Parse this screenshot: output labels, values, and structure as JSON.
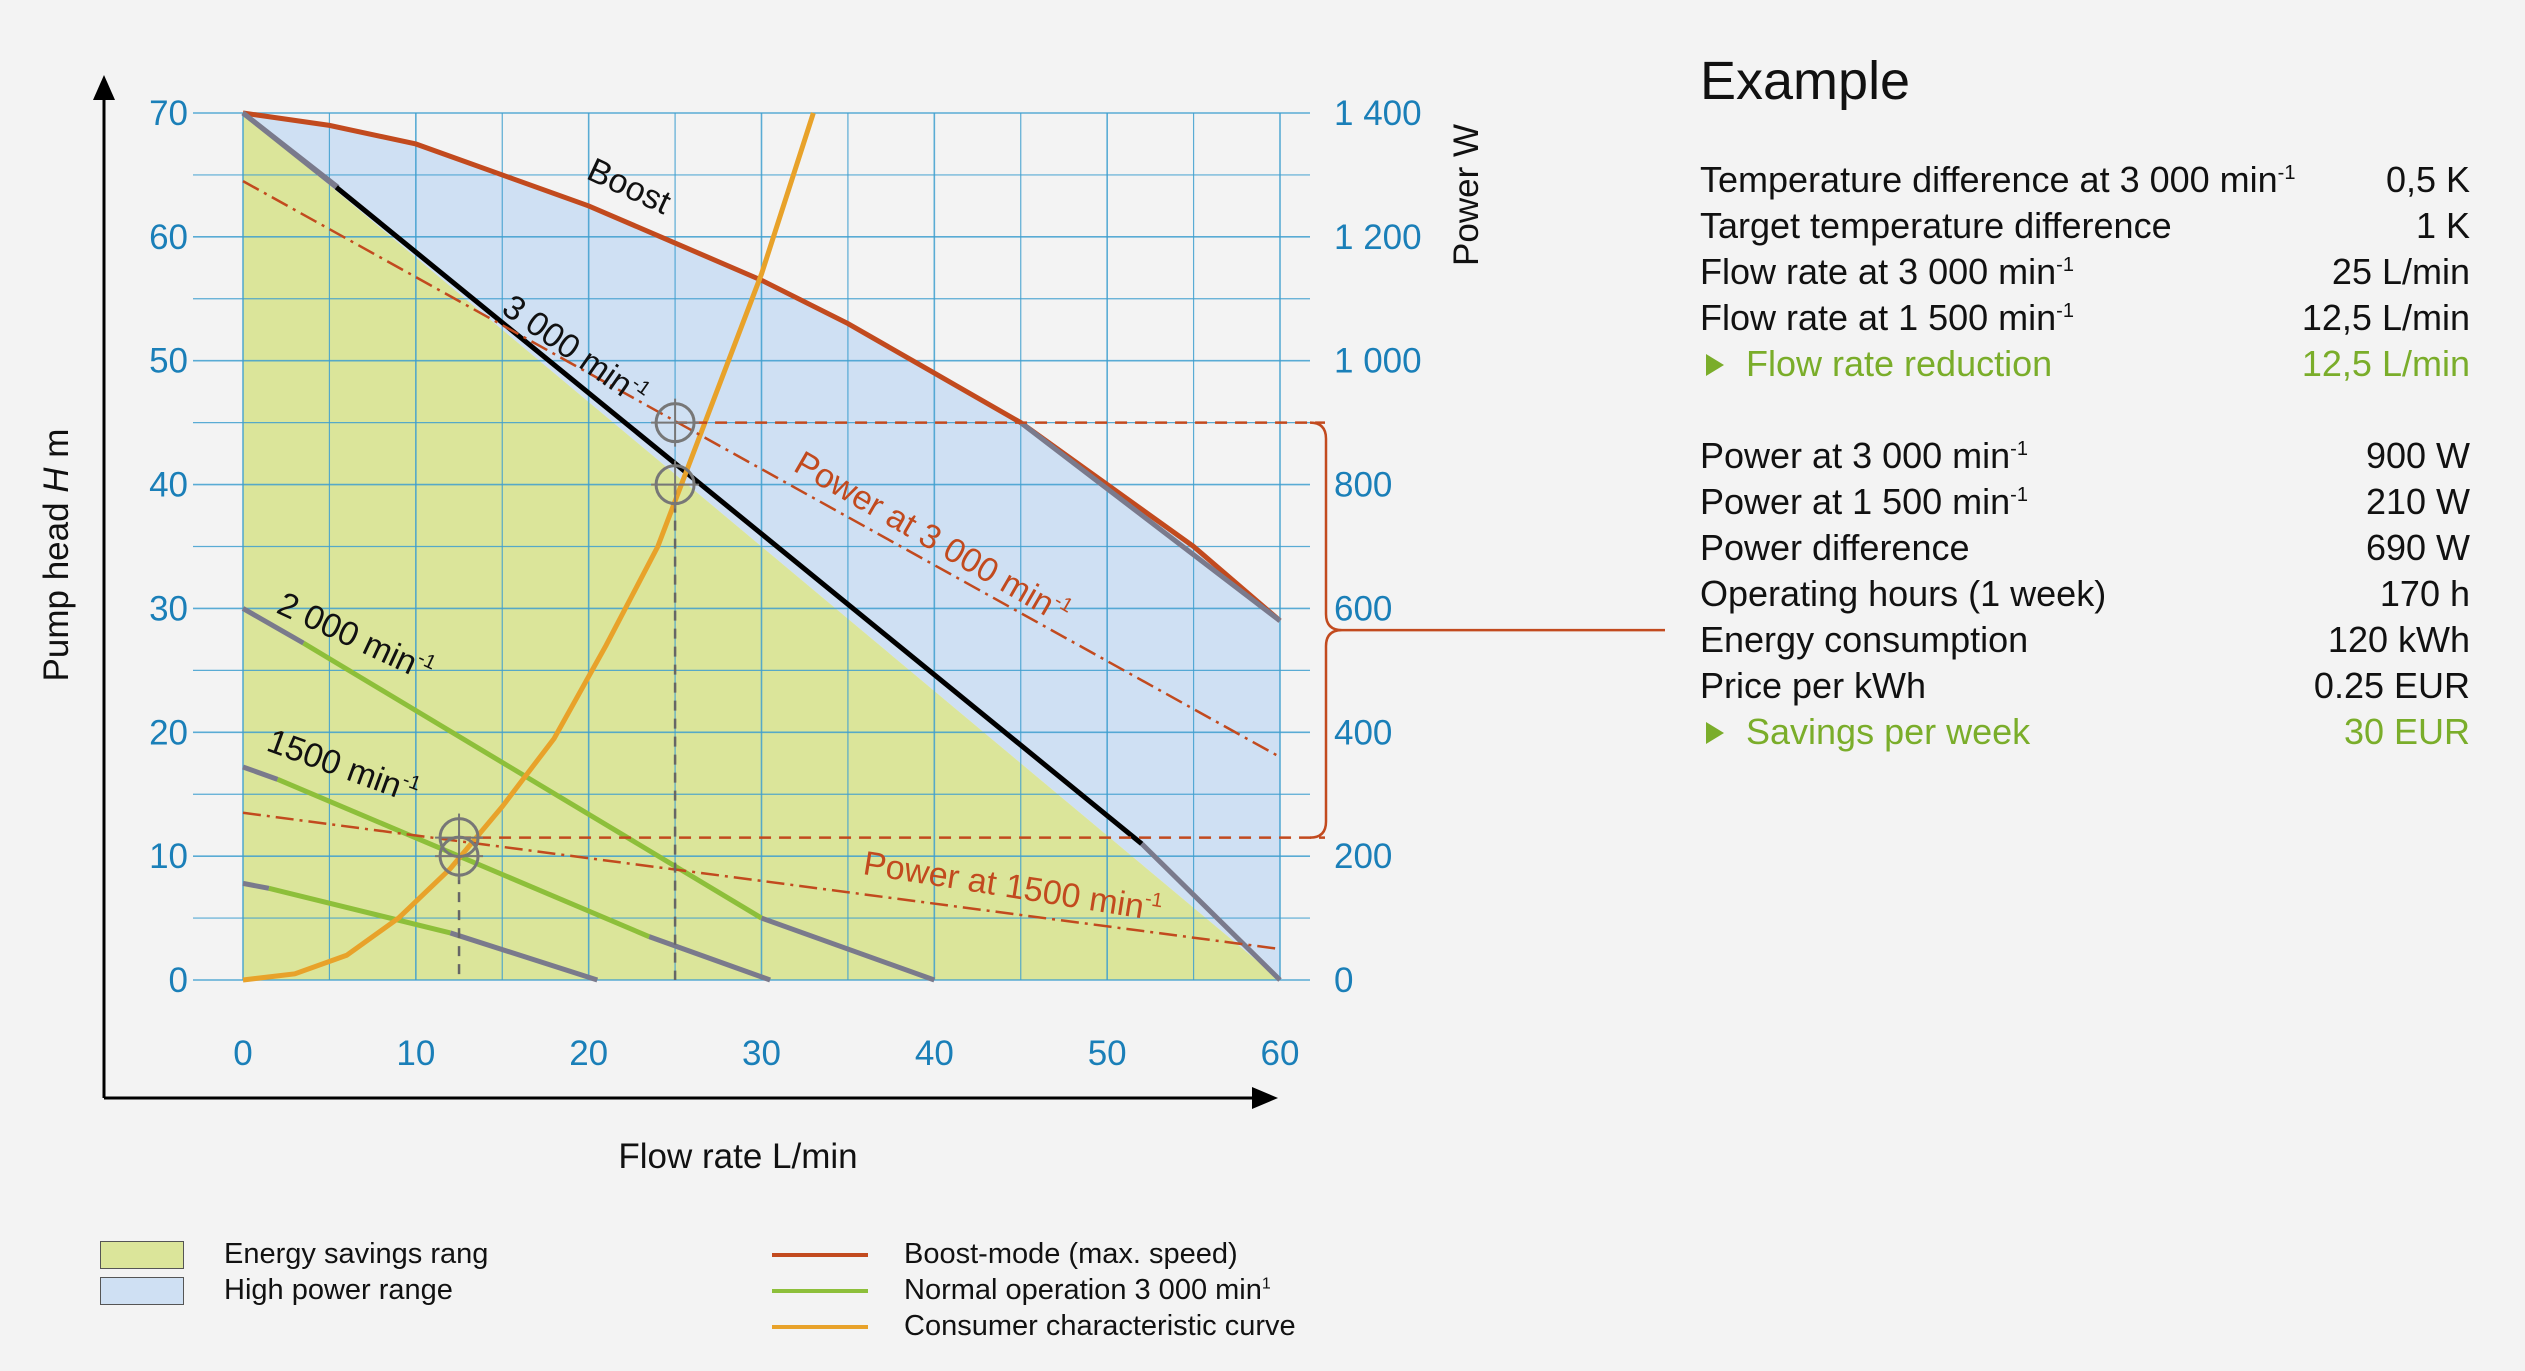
{
  "chart_data": {
    "type": "line",
    "xlabel": "Flow rate  L/min",
    "ylabel_text": "Pump head",
    "ylabel_symbol": "H",
    "ylabel_unit": "m",
    "y2label": "Power  W",
    "xlim": [
      0,
      60
    ],
    "ylim": [
      0,
      70
    ],
    "y2lim": [
      0,
      1400
    ],
    "grid": true,
    "x_ticks": [
      "0",
      "10",
      "20",
      "30",
      "40",
      "50",
      "60"
    ],
    "y_ticks": [
      "0",
      "10",
      "20",
      "30",
      "40",
      "50",
      "60",
      "70"
    ],
    "y2_ticks": [
      "0",
      "200",
      "400",
      "600",
      "800",
      "1 000",
      "1 200",
      "1 400"
    ],
    "regions": [
      {
        "name": "Energy savings rang",
        "color": "#dbe59a",
        "points": [
          [
            0,
            70
          ],
          [
            60,
            0
          ],
          [
            0,
            0
          ]
        ]
      },
      {
        "name": "High power range",
        "color": "#cfe0f3"
      }
    ],
    "series": [
      {
        "name": "Boost-mode (max. speed)",
        "color": "#c24a1e",
        "x": [
          0,
          5,
          10,
          15,
          20,
          25,
          30,
          35,
          40,
          45,
          50,
          55,
          60
        ],
        "y": [
          70,
          69,
          67.5,
          65,
          62.5,
          59.5,
          56.5,
          53,
          49,
          45,
          40,
          35,
          29
        ]
      },
      {
        "label": "3 000 min-1",
        "color": "#000000",
        "x": [
          0,
          5.4,
          52,
          60
        ],
        "y": [
          70,
          64,
          11,
          0
        ]
      },
      {
        "label": "2 000 min-1",
        "color": "#8dbf3a",
        "x": [
          0,
          3.5,
          30,
          40
        ],
        "y": [
          30,
          27.2,
          5,
          0
        ]
      },
      {
        "label": "1500 min-1",
        "color": "#8dbf3a",
        "x": [
          0,
          2,
          28,
          30.5
        ],
        "y": [
          17.2,
          16.2,
          2.5,
          0
        ]
      },
      {
        "color": "#8dbf3a",
        "x": [
          0,
          1.5,
          12,
          20.5
        ],
        "y": [
          7.8,
          7.4,
          3.8,
          0
        ]
      },
      {
        "name": "Consumer characteristic curve",
        "color": "#e8a22a",
        "x": [
          0,
          3,
          6,
          9,
          12,
          15,
          18,
          21,
          24,
          27,
          30,
          33
        ],
        "y": [
          0,
          0.5,
          2,
          5,
          9,
          14,
          19.5,
          27,
          35,
          46,
          57,
          70
        ]
      },
      {
        "label": "Power at 3 000 min-1",
        "color": "#c24a1e",
        "axis": "power",
        "x": [
          0,
          60
        ],
        "y": [
          1290,
          360
        ]
      },
      {
        "label": "Power at 1500 min-1",
        "color": "#c24a1e",
        "axis": "power",
        "x": [
          0,
          60
        ],
        "y": [
          270,
          50
        ]
      }
    ],
    "annotations": [
      {
        "text": "Boost",
        "x": 20.5,
        "y": 62
      },
      {
        "text": "3 000 min-1",
        "x": 22,
        "y": 52
      },
      {
        "text": "2 000 min-1",
        "x": 7,
        "y": 27
      },
      {
        "text": "1500 min-1",
        "x": 7,
        "y": 17
      },
      {
        "text": "Power at 3 000 min-1",
        "x": 37,
        "y": 37
      },
      {
        "text": "Power at 1500 min-1",
        "x": 45.5,
        "y": 5.5
      }
    ],
    "operating_points": [
      {
        "x": 25,
        "y": 40
      },
      {
        "x": 25,
        "y": 45
      },
      {
        "x": 12.5,
        "y": 10
      },
      {
        "x": 12.5,
        "y": 11.5
      }
    ]
  },
  "curve_labels": {
    "boost": "Boost",
    "rpm3000": "3 000 min",
    "rpm2000": "2 000 min",
    "rpm1500": "1500 min",
    "p3000": "Power at 3 000 min",
    "p1500": "Power at 1500 min",
    "sup": "-1"
  },
  "example": {
    "title": "Example",
    "rows1": [
      {
        "label": "Temperature difference at 3 000 min",
        "sup": "-1",
        "value": "0,5 K"
      },
      {
        "label": "Target temperature difference",
        "sup": "",
        "value": "1 K"
      },
      {
        "label": "Flow rate at 3 000 min",
        "sup": "-1",
        "value": "25 L/min"
      },
      {
        "label": "Flow rate at 1 500 min",
        "sup": "-1",
        "value": "12,5 L/min"
      },
      {
        "label": "Flow rate reduction",
        "sup": "",
        "value": "12,5 L/min",
        "highlight": true
      }
    ],
    "rows2": [
      {
        "label": "Power at 3 000 min",
        "sup": "-1",
        "value": "900 W"
      },
      {
        "label": "Power at 1 500 min",
        "sup": "-1",
        "value": "210 W"
      },
      {
        "label": "Power difference",
        "sup": "",
        "value": "690 W"
      },
      {
        "label": "Operating hours (1 week)",
        "sup": "",
        "value": "170 h"
      },
      {
        "label": "Energy consumption",
        "sup": "",
        "value": "120 kWh"
      },
      {
        "label": "Price per kWh",
        "sup": "",
        "value": "0.25 EUR"
      },
      {
        "label": "Savings per week",
        "sup": "",
        "value": "30 EUR",
        "highlight": true
      }
    ]
  },
  "legend": {
    "energy_savings": "Energy savings rang",
    "high_power": "High power range",
    "boost": "Boost-mode (max. speed)",
    "normal": "Normal operation 3 000 min",
    "normal_sup": "1",
    "consumer": "Consumer characteristic curve"
  },
  "colors": {
    "green_fill": "#dbe59a",
    "blue_fill": "#cfe0f3",
    "grid": "#3f9fcf",
    "axis_text": "#1a7fb8",
    "boost": "#c24a1e",
    "normal": "#8dbf3a",
    "consumer": "#e8a22a",
    "gray": "#7a7a8c",
    "highlight_text": "#7aad2a"
  }
}
